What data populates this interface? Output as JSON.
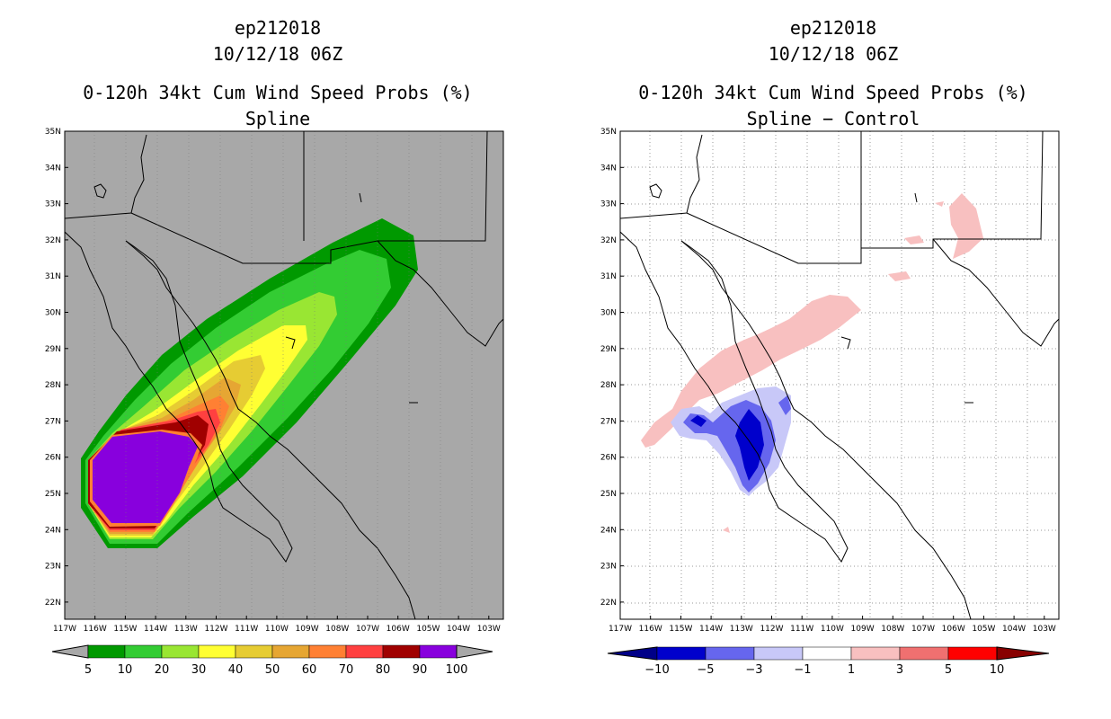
{
  "panels": [
    {
      "storm_id": "ep212018",
      "datetime": "10/12/18 06Z",
      "product": "0-120h 34kt Cum Wind Speed Probs (%)",
      "subtitle": "Spline",
      "colorbar": {
        "labels": [
          "5",
          "10",
          "20",
          "30",
          "40",
          "50",
          "60",
          "70",
          "80",
          "90",
          "100"
        ],
        "colors": [
          "#009900",
          "#33cc33",
          "#99e633",
          "#ffff33",
          "#e6cc33",
          "#e6a633",
          "#ff8033",
          "#ff4040",
          "#a00000",
          "#8800dd"
        ]
      }
    },
    {
      "storm_id": "ep212018",
      "datetime": "10/12/18 06Z",
      "product": "0-120h 34kt Cum Wind Speed Probs (%)",
      "subtitle": "Spline − Control",
      "colorbar": {
        "labels": [
          "−10",
          "−5",
          "−3",
          "−1",
          "1",
          "3",
          "5",
          "10"
        ],
        "colors": [
          "#0000cc",
          "#6666ee",
          "#c8c8f8",
          "#ffffff",
          "#f8c0c0",
          "#f07070",
          "#ff0000"
        ],
        "end_colors": {
          "low": "#000088",
          "high": "#880000"
        }
      }
    }
  ],
  "axes": {
    "lat_labels": [
      "35N",
      "34N",
      "33N",
      "32N",
      "31N",
      "30N",
      "29N",
      "28N",
      "27N",
      "26N",
      "25N",
      "24N",
      "23N",
      "22N"
    ],
    "lon_labels": [
      "117W",
      "116W",
      "115W",
      "114W",
      "113W",
      "112W",
      "111W",
      "110W",
      "109W",
      "108W",
      "107W",
      "106W",
      "105W",
      "104W",
      "103W"
    ]
  },
  "colors": {
    "land_sea_background_left": "#a8a8a8",
    "background_right": "#ffffff",
    "coastline": "#000000"
  }
}
